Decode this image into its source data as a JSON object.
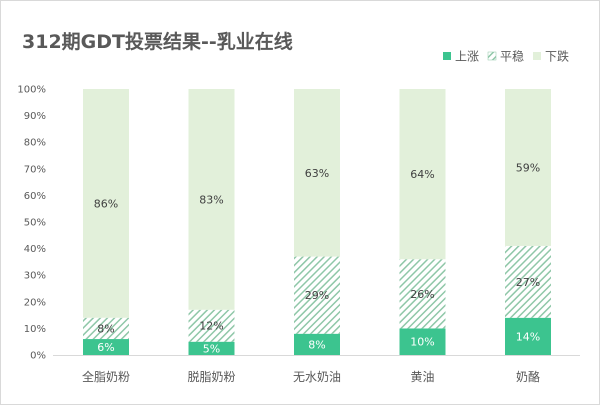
{
  "chart_data": {
    "type": "bar",
    "stacked": true,
    "percent": true,
    "title": "312期GDT投票结果--乳业在线",
    "categories": [
      "全脂奶粉",
      "脱脂奶粉",
      "无水奶油",
      "黄油",
      "奶酪"
    ],
    "series": [
      {
        "name": "上涨",
        "values": [
          6,
          5,
          8,
          10,
          14
        ],
        "labels": [
          "6%",
          "5%",
          "8%",
          "10%",
          "14%"
        ],
        "color": "#3cc48f",
        "pattern": "solid"
      },
      {
        "name": "平稳",
        "values": [
          8,
          12,
          29,
          26,
          27
        ],
        "labels": [
          "8%",
          "12%",
          "29%",
          "26%",
          "27%"
        ],
        "color": "#8fc7a8",
        "pattern": "hatch"
      },
      {
        "name": "下跌",
        "values": [
          86,
          83,
          63,
          64,
          59
        ],
        "labels": [
          "86%",
          "83%",
          "63%",
          "64%",
          "59%"
        ],
        "color": "#e2f0da",
        "pattern": "solid"
      }
    ],
    "yticks": [
      "0%",
      "10%",
      "20%",
      "30%",
      "40%",
      "50%",
      "60%",
      "70%",
      "80%",
      "90%",
      "100%"
    ],
    "ylim": [
      0,
      100
    ],
    "grid": false,
    "legend": "top-right"
  }
}
